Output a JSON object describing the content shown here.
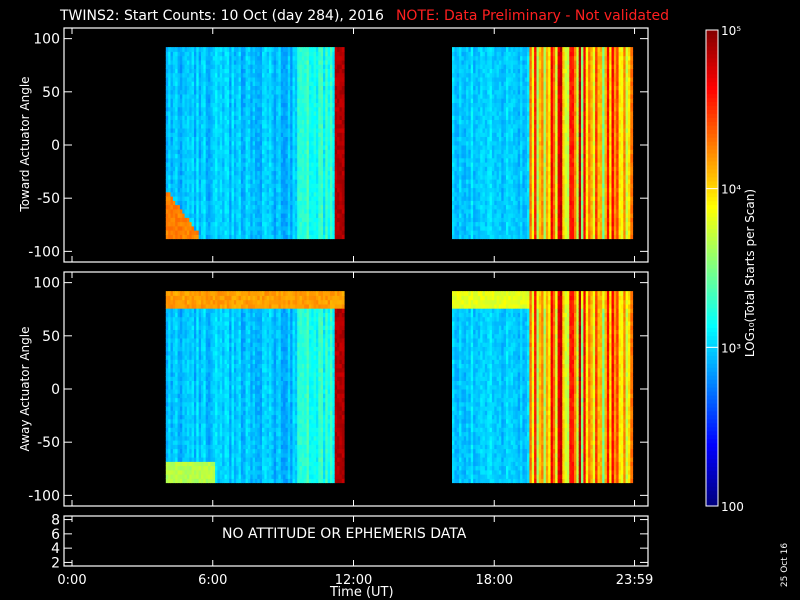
{
  "header": {
    "title": "TWINS2: Start Counts: 10 Oct (day 284), 2016",
    "note": "NOTE: Data Preliminary - Not validated"
  },
  "colors": {
    "background": "#000000",
    "foreground": "#ffffff",
    "note": "#ff2020"
  },
  "chart_data": [
    {
      "type": "heatmap",
      "panel": "toward",
      "ylabel": "Toward Actuator Angle",
      "ylim": [
        -110,
        110
      ],
      "yticks": [
        -100,
        -50,
        0,
        50,
        100
      ],
      "xlim": [
        0,
        24
      ],
      "data_windows_hours": [
        [
          4.0,
          11.5
        ],
        [
          16.2,
          23.9
        ]
      ],
      "angle_range": [
        -88,
        90
      ],
      "description_levels": {
        "background_log10": 2.9,
        "high_counts_after_hour": 11.1,
        "edge_enhancement_low_angles_start": 4.0
      }
    },
    {
      "type": "heatmap",
      "panel": "away",
      "ylabel": "Away Actuator Angle",
      "ylim": [
        -110,
        110
      ],
      "yticks": [
        -100,
        -50,
        0,
        50,
        100
      ],
      "xlim": [
        0,
        24
      ],
      "data_windows_hours": [
        [
          4.0,
          11.5
        ],
        [
          16.2,
          23.9
        ]
      ],
      "angle_range": [
        -88,
        90
      ],
      "description_levels": {
        "background_log10": 2.8,
        "high_band_angle": 82
      }
    },
    {
      "type": "line",
      "panel": "ephemeris",
      "ylim": [
        1.5,
        8.5
      ],
      "yticks": [
        2,
        4,
        6,
        8
      ],
      "message": "NO ATTITUDE OR EPHEMERIS DATA"
    }
  ],
  "xaxis": {
    "ticks": [
      0,
      6,
      12,
      18,
      23.98
    ],
    "tick_labels": [
      "0:00",
      "6:00",
      "12:00",
      "18:00",
      "23:59"
    ],
    "label": "Time (UT)"
  },
  "colorbar": {
    "range_log10": [
      2,
      5
    ],
    "tick_values_log10": [
      2,
      3,
      4,
      5
    ],
    "tick_labels": [
      "100",
      "10³",
      "10⁴",
      "10⁵"
    ],
    "label": "LOG₁₀(Total Starts per Scan)"
  },
  "footer": {
    "stamp": "25 Oct 16"
  },
  "ytick_labels": {
    "angle": [
      "100",
      "50",
      "0",
      "-50",
      "-100"
    ],
    "ephem": [
      "8",
      "6",
      "4",
      "2"
    ]
  }
}
